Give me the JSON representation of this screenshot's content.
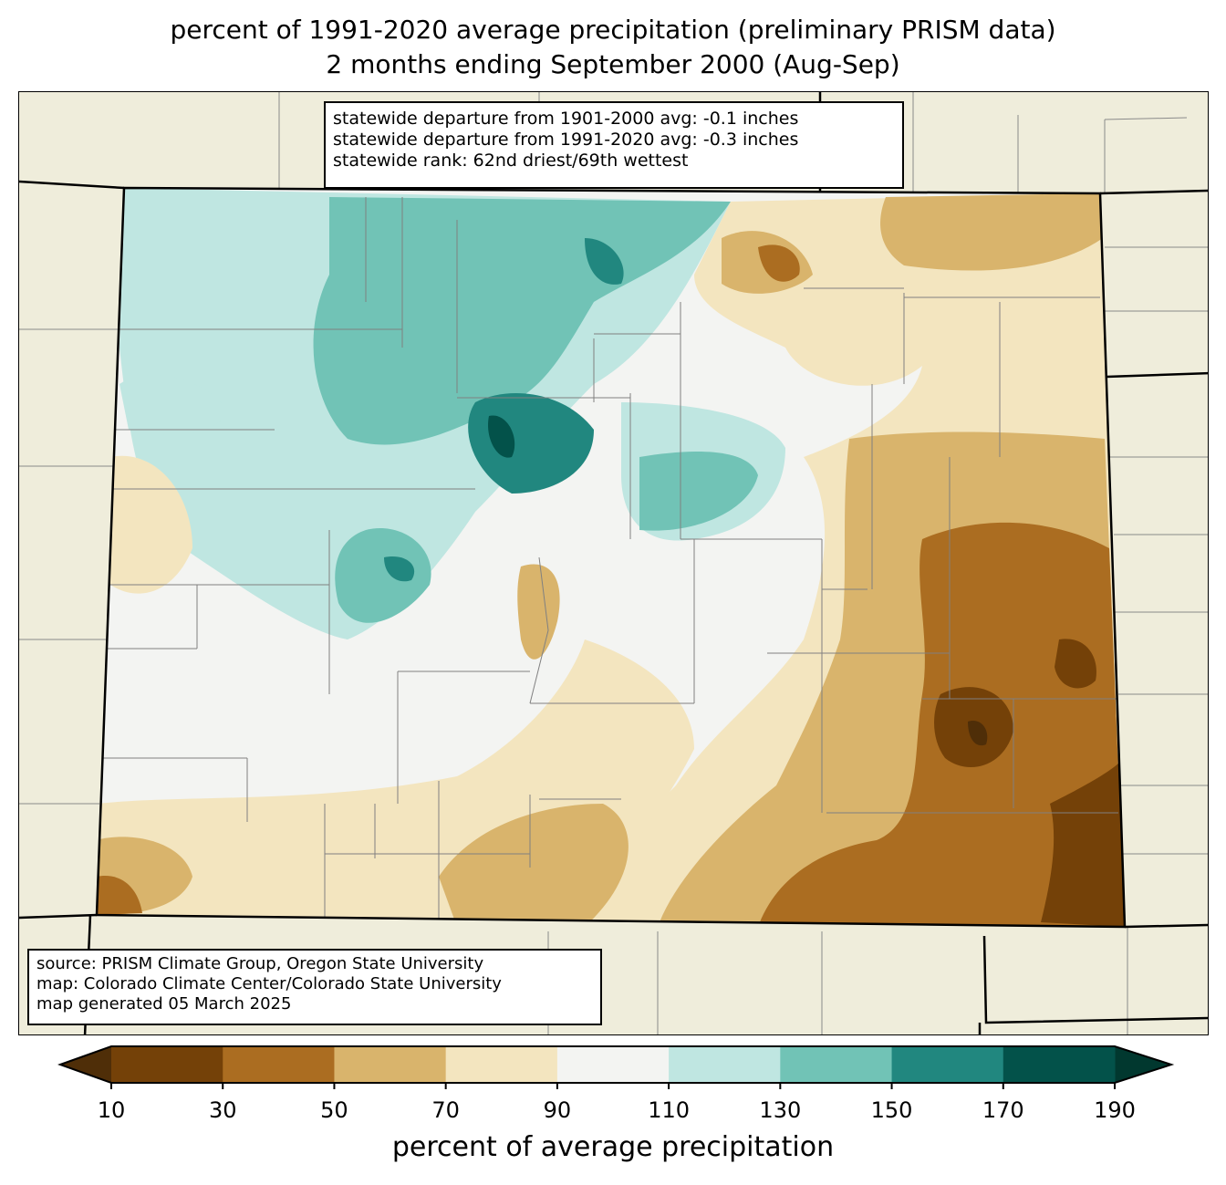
{
  "title": {
    "line1": "percent of 1991-2020 average precipitation (preliminary PRISM data)",
    "line2": "2 months ending September 2000 (Aug-Sep)"
  },
  "stats": [
    "statewide departure from 1901-2000 avg: -0.1 inches",
    "statewide departure from 1991-2020 avg: -0.3 inches",
    "statewide rank: 62nd driest/69th wettest"
  ],
  "source": [
    "source: PRISM Climate Group, Oregon State University",
    "map: Colorado Climate Center/Colorado State University",
    "map generated 05 March 2025"
  ],
  "colorbar": {
    "label": "percent of average precipitation",
    "ticks": [
      "10",
      "30",
      "50",
      "70",
      "90",
      "110",
      "130",
      "150",
      "170",
      "190"
    ],
    "colors": [
      "#744108",
      "#ab6d21",
      "#d9b46c",
      "#f3e5bf",
      "#f3f4f2",
      "#bfe6e1",
      "#71c3b6",
      "#21877f",
      "#03524a"
    ],
    "extend_low": "#4f2e08",
    "extend_high": "#01382f"
  },
  "colors": {
    "background": "#efeddb",
    "county_lines": "#808080"
  }
}
